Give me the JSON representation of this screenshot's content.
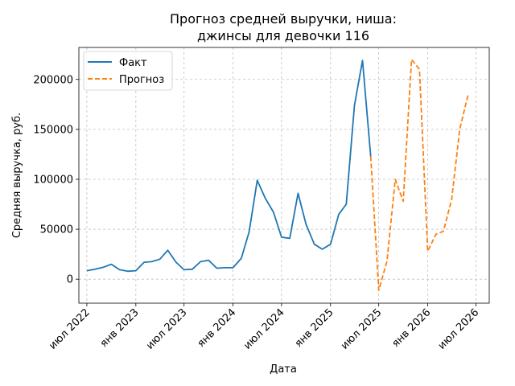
{
  "chart_data": {
    "type": "line",
    "title_lines": [
      "Прогноз средней выручки, ниша:",
      "джинсы для девочки 116"
    ],
    "xlabel": "Дата",
    "ylabel": "Средняя выручка, руб.",
    "xlim": [
      "2022-06-01",
      "2026-08-20"
    ],
    "ylim": [
      -24000,
      232000
    ],
    "x_ticks": [
      {
        "date": "2022-07-01",
        "label": "июл 2022"
      },
      {
        "date": "2023-01-01",
        "label": "янв 2023"
      },
      {
        "date": "2023-07-01",
        "label": "июл 2023"
      },
      {
        "date": "2024-01-01",
        "label": "янв 2024"
      },
      {
        "date": "2024-07-01",
        "label": "июл 2024"
      },
      {
        "date": "2025-01-01",
        "label": "янв 2025"
      },
      {
        "date": "2025-07-01",
        "label": "июл 2025"
      },
      {
        "date": "2026-01-01",
        "label": "янв 2026"
      },
      {
        "date": "2026-07-01",
        "label": "июл 2026"
      }
    ],
    "y_ticks": [
      0,
      50000,
      100000,
      150000,
      200000
    ],
    "grid": true,
    "legend_position": "top-left",
    "series": [
      {
        "name": "Факт",
        "color": "#1f77b4",
        "style": "solid",
        "x": [
          "2022-07-01",
          "2022-08-01",
          "2022-09-01",
          "2022-10-01",
          "2022-11-01",
          "2022-12-01",
          "2023-01-01",
          "2023-02-01",
          "2023-03-01",
          "2023-04-01",
          "2023-05-01",
          "2023-06-01",
          "2023-07-01",
          "2023-08-01",
          "2023-09-01",
          "2023-10-01",
          "2023-11-01",
          "2023-12-01",
          "2024-01-01",
          "2024-02-01",
          "2024-03-01",
          "2024-04-01",
          "2024-05-01",
          "2024-06-01",
          "2024-07-01",
          "2024-08-01",
          "2024-09-01",
          "2024-10-01",
          "2024-11-01",
          "2024-12-01",
          "2025-01-01",
          "2025-02-01",
          "2025-03-01",
          "2025-04-01",
          "2025-05-01",
          "2025-06-01"
        ],
        "y": [
          8500,
          10000,
          12000,
          15000,
          9500,
          8000,
          8500,
          17000,
          17500,
          20000,
          29000,
          17000,
          9500,
          10000,
          17500,
          19000,
          11000,
          11500,
          11500,
          21000,
          47000,
          99000,
          81000,
          67000,
          42000,
          41000,
          86000,
          55000,
          35000,
          30000,
          35000,
          65000,
          75000,
          174000,
          219000,
          123000
        ]
      },
      {
        "name": "Прогноз",
        "color": "#ff7f0e",
        "style": "dashed",
        "x": [
          "2025-06-01",
          "2025-07-01",
          "2025-08-01",
          "2025-09-01",
          "2025-10-01",
          "2025-11-01",
          "2025-12-01",
          "2026-01-01",
          "2026-02-01",
          "2026-03-01",
          "2026-04-01",
          "2026-05-01",
          "2026-06-01"
        ],
        "y": [
          123000,
          -11000,
          18000,
          100000,
          78000,
          220000,
          210000,
          28000,
          45000,
          48000,
          80000,
          150000,
          184000
        ]
      }
    ]
  }
}
